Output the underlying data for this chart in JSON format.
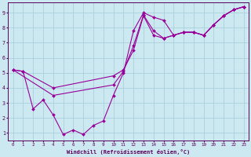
{
  "xlabel": "Windchill (Refroidissement éolien,°C)",
  "xlim": [
    0,
    23
  ],
  "ylim": [
    0.5,
    9.7
  ],
  "xticks": [
    0,
    1,
    2,
    3,
    4,
    5,
    6,
    7,
    8,
    9,
    10,
    11,
    12,
    13,
    14,
    15,
    16,
    17,
    18,
    19,
    20,
    21,
    22,
    23
  ],
  "yticks": [
    1,
    2,
    3,
    4,
    5,
    6,
    7,
    8,
    9
  ],
  "background_color": "#cce8f0",
  "grid_color": "#aad0dc",
  "line_color": "#990099",
  "line1_x": [
    0,
    1,
    2,
    3,
    4,
    5,
    6,
    7,
    8,
    9,
    10,
    11,
    12,
    13,
    14,
    15,
    16,
    17,
    18,
    19,
    20,
    21,
    22,
    23
  ],
  "line1_y": [
    5.2,
    5.1,
    2.6,
    3.2,
    2.2,
    0.9,
    1.2,
    0.9,
    1.5,
    1.8,
    3.5,
    5.0,
    7.8,
    9.0,
    8.7,
    8.5,
    7.5,
    7.7,
    7.7,
    7.5,
    8.2,
    8.8,
    9.2,
    9.4
  ],
  "line2_x": [
    0,
    1,
    4,
    10,
    11,
    12,
    13,
    14,
    15,
    16,
    17,
    18,
    19,
    20,
    21,
    22,
    23
  ],
  "line2_y": [
    5.2,
    5.1,
    4.0,
    4.8,
    5.2,
    6.5,
    8.8,
    7.5,
    7.3,
    7.5,
    7.7,
    7.7,
    7.5,
    8.2,
    8.8,
    9.2,
    9.4
  ],
  "line3_x": [
    0,
    4,
    10,
    11,
    12,
    13,
    14,
    15,
    16,
    17,
    18,
    19,
    20,
    21,
    22,
    23
  ],
  "line3_y": [
    5.2,
    3.5,
    4.2,
    5.1,
    6.8,
    8.85,
    7.8,
    7.3,
    7.5,
    7.7,
    7.7,
    7.5,
    8.2,
    8.8,
    9.2,
    9.4
  ]
}
